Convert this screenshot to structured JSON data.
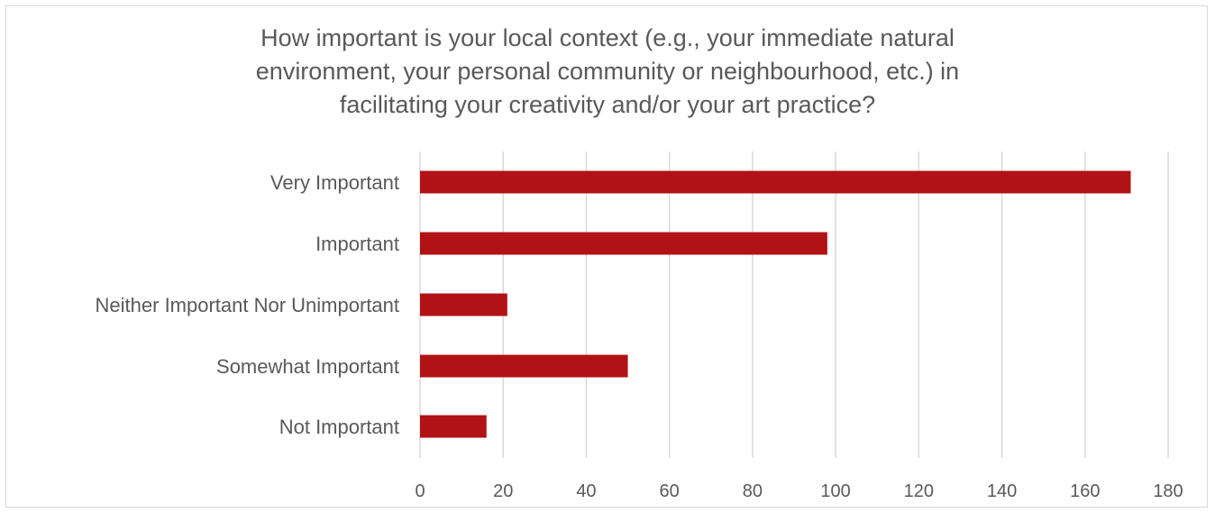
{
  "chart_data": {
    "type": "bar",
    "orientation": "horizontal",
    "title_lines": [
      "How important is your local context (e.g., your immediate natural",
      "environment, your personal community or neighbourhood, etc.) in",
      "facilitating your creativity and/or your art practice?"
    ],
    "categories": [
      "Very Important",
      "Important",
      "Neither Important Nor Unimportant",
      "Somewhat Important",
      "Not Important"
    ],
    "values": [
      171,
      98,
      21,
      50,
      16
    ],
    "xlim": [
      0,
      180
    ],
    "xticks": [
      "0",
      "20",
      "40",
      "60",
      "80",
      "100",
      "120",
      "140",
      "160",
      "180"
    ],
    "xlabel": "",
    "ylabel": "",
    "grid": "vertical",
    "legend": "none",
    "bar_color": "#b01216",
    "grid_color": "#d9d9d9",
    "text_color": "#595959"
  }
}
